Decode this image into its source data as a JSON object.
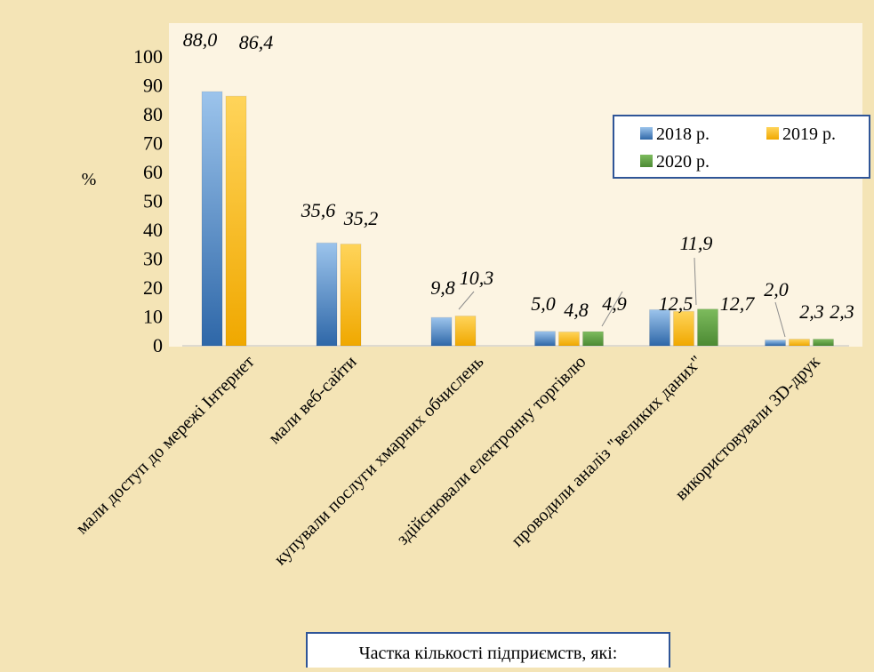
{
  "chart_data": {
    "type": "bar",
    "title": "",
    "xlabel": "Частка кількості підприємств, які:",
    "ylabel": "%",
    "ylim": [
      0,
      100
    ],
    "yticks": [
      0,
      10,
      20,
      30,
      40,
      50,
      60,
      70,
      80,
      90,
      100
    ],
    "grid": false,
    "legend_position": "top-right",
    "categories": [
      "мали доступ до мережі Інтернет",
      "мали веб-сайти",
      "купували послуги хмарних обчислень",
      "здійснювали електронну торгівлю",
      "проводили аналіз \"великих даних\"",
      "використовували 3D-друк"
    ],
    "series": [
      {
        "name": "2018 р.",
        "color": "#3d7cc2",
        "values": [
          88.0,
          35.6,
          9.8,
          5.0,
          12.5,
          2.0
        ],
        "labels": [
          "88,0",
          "35,6",
          "9,8",
          "5,0",
          "12,5",
          "2,0"
        ]
      },
      {
        "name": "2019 р.",
        "color": "#ffc000",
        "values": [
          86.4,
          35.2,
          10.3,
          4.8,
          11.9,
          2.3
        ],
        "labels": [
          "86,4",
          "35,2",
          "10,3",
          "4,8",
          "11,9",
          "2,3"
        ]
      },
      {
        "name": "2020 р.",
        "color": "#5fa044",
        "values": [
          null,
          null,
          null,
          4.9,
          12.7,
          2.3
        ],
        "labels": [
          "",
          "",
          "",
          "4,9",
          "12,7",
          "2,3"
        ]
      }
    ]
  }
}
